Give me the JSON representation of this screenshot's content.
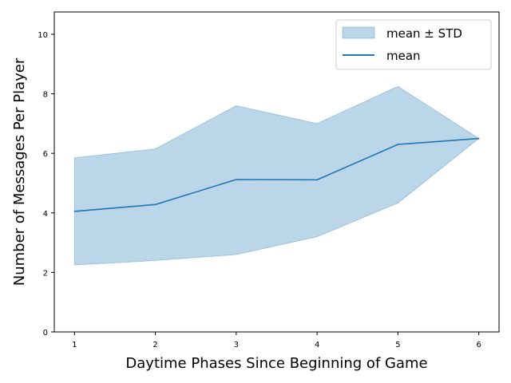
{
  "chart_data": {
    "type": "area",
    "title": "",
    "xlabel": "Daytime Phases Since Beginning of Game",
    "ylabel": "Number of Messages Per Player",
    "x": [
      1,
      2,
      3,
      4,
      5,
      6
    ],
    "xticks": [
      1,
      2,
      3,
      4,
      5,
      6
    ],
    "yticks": [
      0,
      2,
      4,
      6,
      8,
      10
    ],
    "xlim": [
      0.75,
      6.25
    ],
    "ylim": [
      0,
      10.75
    ],
    "grid": false,
    "legend_position": "top-right",
    "series": [
      {
        "name": "mean",
        "kind": "line",
        "color": "#1f77b4",
        "values": [
          4.05,
          4.28,
          5.12,
          5.11,
          6.3,
          6.5
        ]
      },
      {
        "name": "mean ± STD",
        "kind": "band",
        "color": "#1f77b4",
        "lower": [
          2.25,
          2.4,
          2.6,
          3.2,
          4.33,
          6.5
        ],
        "upper": [
          5.85,
          6.15,
          7.6,
          7.0,
          8.25,
          6.5
        ]
      }
    ]
  }
}
